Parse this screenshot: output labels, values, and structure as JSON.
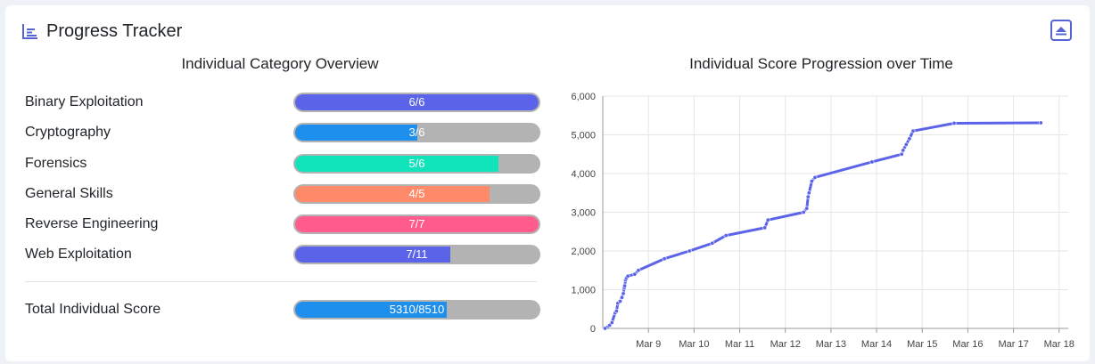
{
  "header": {
    "title": "Progress Tracker",
    "title_icon": "bar-chart-icon",
    "collapse_icon": "chevron-up-square-icon"
  },
  "categories_panel": {
    "title": "Individual Category Overview",
    "items": [
      {
        "label": "Binary Exploitation",
        "solved": 6,
        "total": 6,
        "text": "6/6",
        "color": "#5b63e8"
      },
      {
        "label": "Cryptography",
        "solved": 3,
        "total": 6,
        "text": "3/6",
        "color": "#1f8fee"
      },
      {
        "label": "Forensics",
        "solved": 5,
        "total": 6,
        "text": "5/6",
        "color": "#11e3bb"
      },
      {
        "label": "General Skills",
        "solved": 4,
        "total": 5,
        "text": "4/5",
        "color": "#ff8a6a"
      },
      {
        "label": "Reverse Engineering",
        "solved": 7,
        "total": 7,
        "text": "7/7",
        "color": "#ff5b8c"
      },
      {
        "label": "Web Exploitation",
        "solved": 7,
        "total": 11,
        "text": "7/11",
        "color": "#5b63e8"
      }
    ],
    "total": {
      "label": "Total Individual Score",
      "score": 5310,
      "max": 8510,
      "text": "5310/8510",
      "color": "#1f8fee"
    }
  },
  "chart_data": {
    "type": "line",
    "title": "Individual Score Progression over Time",
    "xlabel": "",
    "ylabel": "",
    "ylim": [
      0,
      6000
    ],
    "yticks": [
      "0",
      "1,000",
      "2,000",
      "3,000",
      "4,000",
      "5,000",
      "6,000"
    ],
    "xticks": [
      "Mar 9",
      "Mar 10",
      "Mar 11",
      "Mar 12",
      "Mar 13",
      "Mar 14",
      "Mar 15",
      "Mar 16",
      "Mar 17",
      "Mar 18"
    ],
    "xtick_values": [
      9,
      10,
      11,
      12,
      13,
      14,
      15,
      16,
      17,
      18
    ],
    "xlim": [
      8.0,
      18.2
    ],
    "color": "#5b63e8",
    "series": [
      {
        "x": [
          8.05,
          8.15,
          8.2,
          8.27,
          8.3,
          8.33,
          8.38,
          8.42,
          8.45,
          8.47,
          8.48,
          8.5,
          8.52,
          8.55,
          8.7,
          8.78,
          9.35,
          9.9,
          10.4,
          10.7,
          11.55,
          11.62,
          12.4,
          12.47,
          12.5,
          12.52,
          12.58,
          12.65,
          13.9,
          14.55,
          14.58,
          14.65,
          14.72,
          14.8,
          15.7,
          17.6
        ],
        "y": [
          0,
          80,
          150,
          400,
          450,
          650,
          700,
          800,
          900,
          1050,
          1100,
          1250,
          1300,
          1350,
          1400,
          1500,
          1800,
          2000,
          2200,
          2400,
          2600,
          2800,
          3000,
          3100,
          3400,
          3500,
          3800,
          3900,
          4300,
          4500,
          4600,
          4750,
          4900,
          5100,
          5300,
          5310
        ]
      }
    ]
  }
}
